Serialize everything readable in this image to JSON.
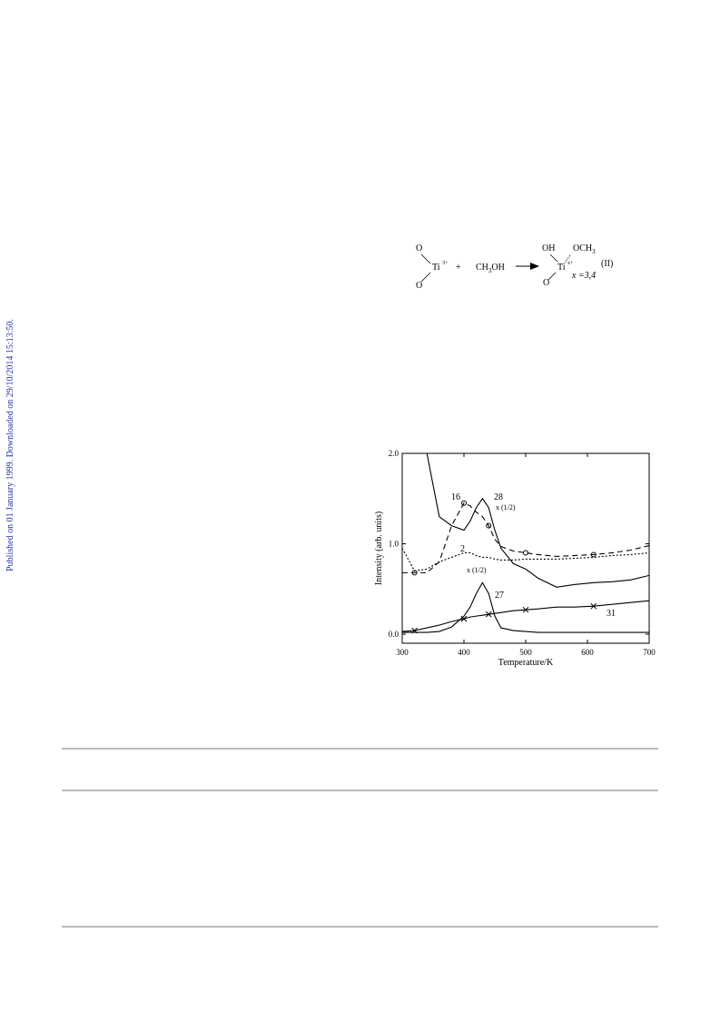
{
  "side_note": "Published on 01 January 1999. Downloaded on 29/10/2014 15:13:50.",
  "equation": {
    "reactant": {
      "top": "O",
      "metal": "Ti",
      "charge": "3+",
      "bottom": "O"
    },
    "plus": "+",
    "reagent": {
      "base": "CH",
      "sub": "3",
      "rest": "OH"
    },
    "product": {
      "oh": "OH",
      "och": "OCH",
      "och_sub": "3",
      "metal": "Ti",
      "charge": "x+",
      "bottom": "O"
    },
    "label": "(II)",
    "note": "x =3,4"
  },
  "chart_data": {
    "type": "line",
    "xlabel": "Temperature/K",
    "ylabel": "Intensity (arb. units)",
    "x": [
      300,
      320,
      340,
      360,
      380,
      400,
      410,
      420,
      430,
      440,
      450,
      460,
      480,
      500,
      520,
      550,
      580,
      610,
      640,
      670,
      700
    ],
    "xlim": [
      300,
      700
    ],
    "xticks": [
      300,
      400,
      500,
      600,
      700
    ],
    "ylim": [
      -0.1,
      2.0
    ],
    "yticks": [
      {
        "value": 0,
        "label": "0.0"
      },
      {
        "value": 1,
        "label": "1.0"
      },
      {
        "value": 2,
        "label": "2.0"
      }
    ],
    "series": [
      {
        "name": "28",
        "color": "#000000",
        "dash": "solid",
        "marker": "none",
        "values": [
          null,
          null,
          2.0,
          1.3,
          1.2,
          1.15,
          1.25,
          1.4,
          1.5,
          1.4,
          1.15,
          0.95,
          0.78,
          0.72,
          0.62,
          0.52,
          0.55,
          0.57,
          0.58,
          0.6,
          0.65
        ]
      },
      {
        "name": "16",
        "color": "#000000",
        "dash": "dashed",
        "marker": "o",
        "values": [
          0.68,
          0.68,
          0.68,
          0.8,
          1.2,
          1.45,
          1.42,
          1.35,
          1.3,
          1.2,
          1.05,
          0.97,
          0.92,
          0.9,
          0.88,
          0.86,
          0.87,
          0.88,
          0.9,
          0.93,
          0.98
        ]
      },
      {
        "name": "2",
        "color": "#000000",
        "dash": "dotted",
        "marker": "none",
        "values": [
          0.95,
          0.7,
          0.72,
          0.8,
          0.85,
          0.9,
          0.9,
          0.87,
          0.85,
          0.85,
          0.83,
          0.82,
          0.82,
          0.83,
          0.83,
          0.83,
          0.84,
          0.85,
          0.87,
          0.88,
          0.9
        ]
      },
      {
        "name": "27",
        "color": "#000000",
        "dash": "solid",
        "marker": "none",
        "values": [
          0.02,
          0.02,
          0.02,
          0.03,
          0.08,
          0.2,
          0.3,
          0.45,
          0.57,
          0.45,
          0.2,
          0.07,
          0.04,
          0.03,
          0.02,
          0.02,
          0.02,
          0.02,
          0.02,
          0.02,
          0.02
        ]
      },
      {
        "name": "31",
        "color": "#000000",
        "dash": "solid",
        "marker": "x",
        "values": [
          0.03,
          0.04,
          0.07,
          0.1,
          0.14,
          0.17,
          0.19,
          0.2,
          0.21,
          0.22,
          0.23,
          0.24,
          0.26,
          0.27,
          0.28,
          0.3,
          0.3,
          0.31,
          0.33,
          0.35,
          0.37
        ]
      }
    ],
    "annotations": [
      "x (1/2)",
      "x (1/2)"
    ]
  }
}
